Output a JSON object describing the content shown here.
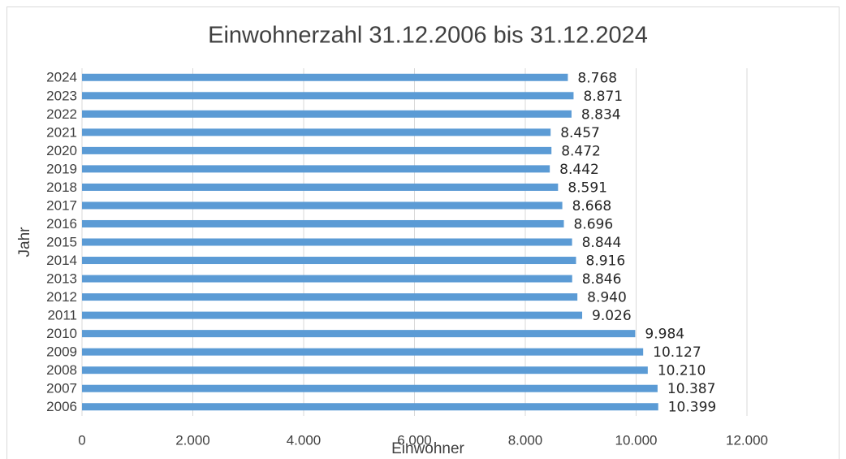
{
  "chart_data": {
    "type": "barh",
    "title": "Einwohnerzahl 31.12.2006 bis 31.12.2024",
    "x_label": "Einwohner",
    "y_label": "Jahr",
    "categories": [
      "2024",
      "2023",
      "2022",
      "2021",
      "2020",
      "2019",
      "2018",
      "2017",
      "2016",
      "2015",
      "2014",
      "2013",
      "2012",
      "2011",
      "2010",
      "2009",
      "2008",
      "2007",
      "2006"
    ],
    "values": [
      8768,
      8871,
      8834,
      8457,
      8472,
      8442,
      8591,
      8668,
      8696,
      8844,
      8916,
      8846,
      8940,
      9026,
      9984,
      10127,
      10210,
      10387,
      10399
    ],
    "value_labels": [
      "8.768",
      "8.871",
      "8.834",
      "8.457",
      "8.472",
      "8.442",
      "8.591",
      "8.668",
      "8.696",
      "8.844",
      "8.916",
      "8.846",
      "8.940",
      "9.026",
      "9.984",
      "10.127",
      "10.210",
      "10.387",
      "10.399"
    ],
    "color": "#5b9bd5",
    "xlim": [
      0,
      12000
    ],
    "xticks": [
      0,
      {
        "value": 2000,
        "label": "2.000"
      },
      {
        "value": 4000,
        "label": "4.000"
      },
      {
        "value": 6000,
        "label": "6.000"
      },
      {
        "value": 8000,
        "label": "8.000"
      },
      {
        "value": 10000,
        "label": "10.000"
      },
      {
        "value": 12000,
        "label": "12.000"
      }
    ],
    "grid": true
  }
}
